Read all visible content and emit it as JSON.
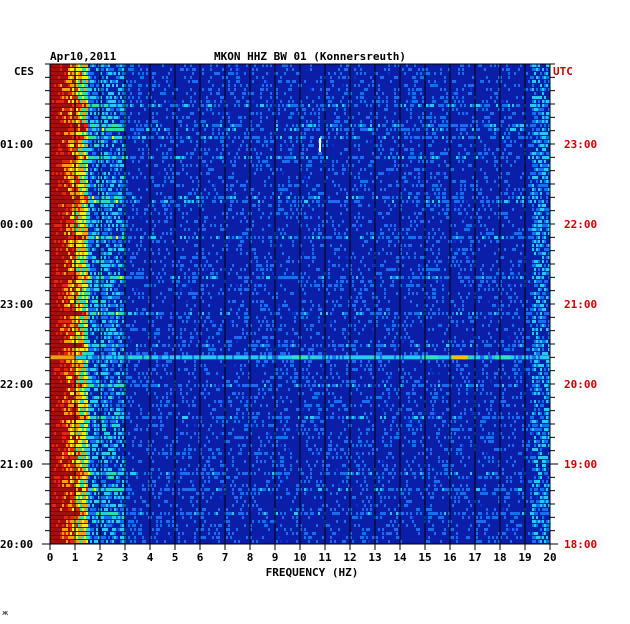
{
  "header": {
    "date": "Apr10,2011",
    "station": "MKON HHZ BW 01 (Konnersreuth)"
  },
  "corner": "ж",
  "colors": {
    "background": "#ffffff",
    "left_time_labels": "#000000",
    "right_time_labels": "#cc0000",
    "grid": "#000000",
    "plot_base": "#0b1ea8"
  },
  "chart_data": {
    "type": "heatmap",
    "title": "MKON HHZ BW 01 (Konnersreuth)",
    "xlabel": "FREQUENCY (HZ)",
    "x_unit": "Hz",
    "xlim": [
      0,
      20
    ],
    "x_ticks": [
      "0",
      "1",
      "2",
      "3",
      "4",
      "5",
      "6",
      "7",
      "8",
      "9",
      "10",
      "11",
      "12",
      "13",
      "14",
      "15",
      "16",
      "17",
      "18",
      "19",
      "20"
    ],
    "left_axis_label": "CES",
    "left_time_labels": [
      "01:00",
      "00:00",
      "23:00",
      "22:00",
      "21:00",
      "20:00"
    ],
    "right_axis_label": "UTC",
    "right_time_labels": [
      "23:00",
      "22:00",
      "21:00",
      "20:00",
      "19:00",
      "18:00"
    ],
    "time_range_utc": [
      "18:00",
      "~00:00"
    ],
    "colorscale": [
      "#0a1a9a",
      "#0b2fd8",
      "#1a6cf0",
      "#28c8f0",
      "#30e0a0",
      "#e8f020",
      "#f0a010",
      "#e02810",
      "#a01010"
    ],
    "features": [
      {
        "description": "Strong low-frequency energy band",
        "freq_range_hz": [
          0,
          1.5
        ]
      },
      {
        "description": "Broadband horizontal event line",
        "utc": "20:20",
        "freq_range_hz": [
          0,
          20
        ]
      },
      {
        "description": "High energy spots on event line",
        "freq_hz": [
          10,
          15.2,
          16.4,
          18.1
        ]
      },
      {
        "description": "Narrow vertical spike",
        "freq_hz": 10.8,
        "utc": "23:00"
      }
    ],
    "grid": true
  }
}
